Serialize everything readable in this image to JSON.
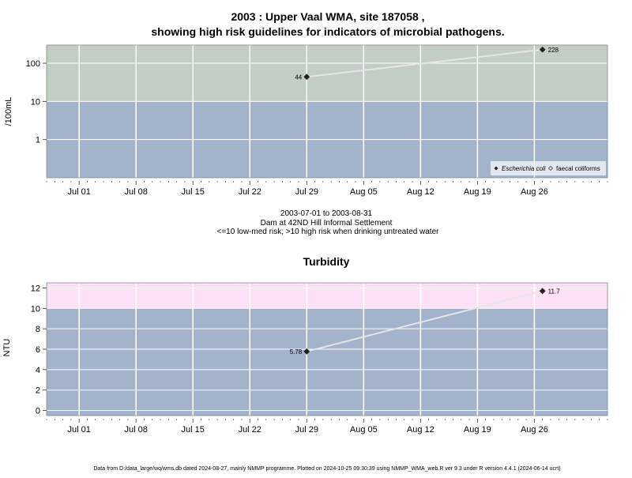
{
  "chart_data": [
    {
      "type": "line",
      "title_line1": "2003 : Upper Vaal WMA, site 187058 ,",
      "title_line2": "showing high risk guidelines for indicators of microbial pathogens.",
      "ylabel": "/100mL",
      "yscale": "log",
      "ytick_labels": [
        "1",
        "10",
        "100"
      ],
      "ytick_values": [
        1,
        10,
        100
      ],
      "ylim": [
        0.1,
        300
      ],
      "xlim": [
        "2003-06-27",
        "2003-09-04"
      ],
      "xtick_labels": [
        "Jul 01",
        "Jul 08",
        "Jul 15",
        "Jul 22",
        "Jul 29",
        "Aug 05",
        "Aug 12",
        "Aug 19",
        "Aug 26"
      ],
      "xtick_dates": [
        "2003-07-01",
        "2003-07-08",
        "2003-07-15",
        "2003-07-22",
        "2003-07-29",
        "2003-08-05",
        "2003-08-12",
        "2003-08-19",
        "2003-08-26"
      ],
      "bands": [
        {
          "from": 0.1,
          "to": 10,
          "color": "#a2b3cb"
        },
        {
          "from": 10,
          "to": 300,
          "color": "#c2cdc3"
        }
      ],
      "series": [
        {
          "name": "Escherichia coli",
          "marker": "filled-diamond",
          "x": [
            "2003-07-29",
            "2003-08-27"
          ],
          "y": [
            44,
            228
          ],
          "labels": [
            "44",
            "228"
          ]
        }
      ],
      "legend": {
        "position": "bottom-right",
        "entries": [
          "Escherichia coli",
          "faecal coliforms"
        ]
      },
      "sub_line1": "2003-07-01 to 2003-08-31",
      "sub_line2": "Dam at 42ND Hill Informal Settlement",
      "sub_line3": "<=10 low-med risk; >10 high risk when drinking untreated water"
    },
    {
      "type": "line",
      "title": "Turbidity",
      "ylabel": "NTU",
      "ytick_labels": [
        "0",
        "2",
        "4",
        "6",
        "8",
        "10",
        "12"
      ],
      "ytick_values": [
        0,
        2,
        4,
        6,
        8,
        10,
        12
      ],
      "ylim": [
        -0.5,
        12.5
      ],
      "xlim": [
        "2003-06-27",
        "2003-09-04"
      ],
      "xtick_labels": [
        "Jul 01",
        "Jul 08",
        "Jul 15",
        "Jul 22",
        "Jul 29",
        "Aug 05",
        "Aug 12",
        "Aug 19",
        "Aug 26"
      ],
      "xtick_dates": [
        "2003-07-01",
        "2003-07-08",
        "2003-07-15",
        "2003-07-22",
        "2003-07-29",
        "2003-08-05",
        "2003-08-12",
        "2003-08-19",
        "2003-08-26"
      ],
      "bands": [
        {
          "from": -0.5,
          "to": 10,
          "color": "#a2b3cb"
        },
        {
          "from": 10,
          "to": 12.5,
          "color": "#fbe0f6"
        }
      ],
      "series": [
        {
          "name": "Turbidity",
          "marker": "filled-diamond",
          "x": [
            "2003-07-29",
            "2003-08-27"
          ],
          "y": [
            5.78,
            11.7
          ],
          "labels": [
            "5.78",
            "11.7"
          ]
        }
      ]
    }
  ],
  "footer": "Data from D:/data_large/wq/wms.db dated 2024-08-27, mainly NMMP programme. Plotted on 2024-10-25 09:30:39 using NMMP_WMA_web.R ver 9.3 under R version 4.4.1 (2024-06-14 ucrt)"
}
